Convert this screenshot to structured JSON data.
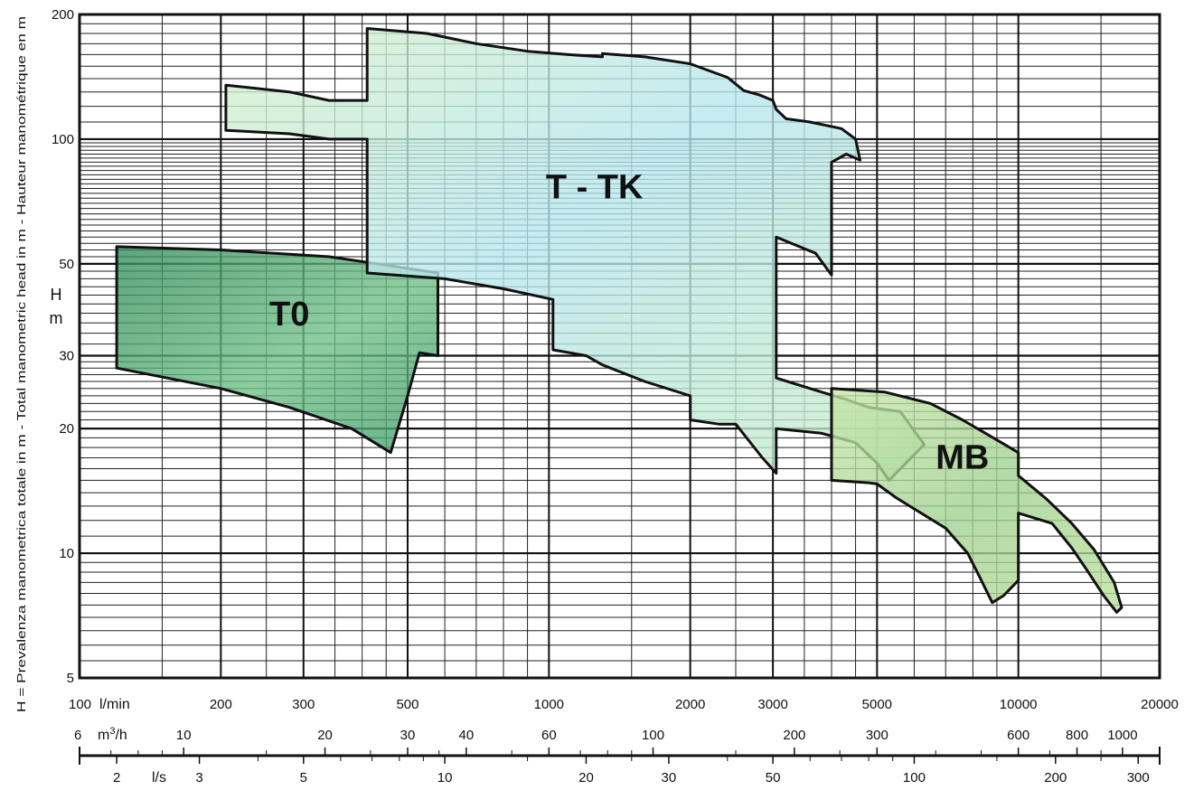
{
  "chart_data": {
    "type": "area",
    "title": "",
    "x_scale": "log",
    "y_scale": "log",
    "xlim_lmin": [
      100,
      20000
    ],
    "ylim_m": [
      5,
      200
    ],
    "grid": true,
    "ylabel": "H = Prevalenza manometrica totale in m - Total manometric head in m - Hauteur manométrique en m",
    "ylabel_short": [
      "H",
      "m"
    ],
    "y_ticks": [
      "5",
      "10",
      "20",
      "30",
      "50",
      "100",
      "200"
    ],
    "y_tick_values": [
      5,
      10,
      20,
      30,
      50,
      100,
      200
    ],
    "x_axes": [
      {
        "unit": "l/min",
        "unit_label_prefix": "100",
        "unit_label_suffix": "l/min",
        "factor": 1,
        "ticks": [
          200,
          300,
          500,
          1000,
          2000,
          3000,
          5000,
          10000,
          20000
        ],
        "tick_labels": [
          "200",
          "300",
          "500",
          "1000",
          "2000",
          "3000",
          "5000",
          "10000",
          "20000"
        ]
      },
      {
        "unit": "m3/h",
        "unit_label_prefix": "6",
        "unit_label_base": "m",
        "unit_label_sup": "3",
        "unit_label_rest": "/h",
        "factor": 16.6667,
        "ticks": [
          10,
          20,
          30,
          40,
          60,
          100,
          200,
          300,
          600,
          800,
          1000
        ],
        "tick_labels": [
          "10",
          "20",
          "30",
          "40",
          "60",
          "100",
          "200",
          "300",
          "600",
          "800",
          "1000"
        ]
      },
      {
        "unit": "l/s",
        "unit_label": "l/s",
        "factor": 60,
        "ticks": [
          2,
          3,
          5,
          10,
          20,
          30,
          50,
          100,
          200,
          300
        ],
        "tick_labels": [
          "2",
          "3",
          "5",
          "10",
          "20",
          "30",
          "50",
          "100",
          "200",
          "300"
        ]
      }
    ],
    "series": [
      {
        "name": "T0",
        "color": "#4fa872",
        "label_at": [
          280,
          35.5
        ],
        "polygon": [
          [
            120,
            55
          ],
          [
            200,
            54
          ],
          [
            340,
            52
          ],
          [
            430,
            50
          ],
          [
            580,
            47.5
          ],
          [
            580,
            30
          ],
          [
            530,
            30.5
          ],
          [
            500,
            24
          ],
          [
            460,
            17.5
          ],
          [
            380,
            20
          ],
          [
            280,
            22.5
          ],
          [
            200,
            25
          ],
          [
            120,
            28
          ]
        ]
      },
      {
        "name": "T - TK",
        "color": "#bfe8e2",
        "label_at": [
          1250,
          72
        ],
        "polygon": [
          [
            205,
            135
          ],
          [
            280,
            130
          ],
          [
            340,
            124
          ],
          [
            410,
            124
          ],
          [
            410,
            185
          ],
          [
            550,
            180
          ],
          [
            700,
            170
          ],
          [
            900,
            163
          ],
          [
            1100,
            160
          ],
          [
            1300,
            158
          ],
          [
            1300,
            161
          ],
          [
            1600,
            158
          ],
          [
            2000,
            152
          ],
          [
            2400,
            141
          ],
          [
            2600,
            131
          ],
          [
            2800,
            128
          ],
          [
            3000,
            124
          ],
          [
            3050,
            118
          ],
          [
            3200,
            112
          ],
          [
            3600,
            110
          ],
          [
            4200,
            106
          ],
          [
            4500,
            100
          ],
          [
            4600,
            89
          ],
          [
            4300,
            92
          ],
          [
            4000,
            88
          ],
          [
            4000,
            47
          ],
          [
            3700,
            53
          ],
          [
            3050,
            58
          ],
          [
            3050,
            26.5
          ],
          [
            3600,
            25
          ],
          [
            4300,
            23.5
          ],
          [
            4800,
            22.5
          ],
          [
            5600,
            22
          ],
          [
            6300,
            18.3
          ],
          [
            5300,
            15
          ],
          [
            5000,
            16.5
          ],
          [
            4500,
            18.5
          ],
          [
            3800,
            19.5
          ],
          [
            3050,
            20
          ],
          [
            3050,
            15.6
          ],
          [
            2850,
            17
          ],
          [
            2500,
            20.5
          ],
          [
            2300,
            20.5
          ],
          [
            2000,
            21
          ],
          [
            2000,
            24
          ],
          [
            1600,
            26
          ],
          [
            1300,
            28.5
          ],
          [
            1200,
            30
          ],
          [
            1020,
            31
          ],
          [
            1020,
            41
          ],
          [
            800,
            43.5
          ],
          [
            600,
            46
          ],
          [
            410,
            47.5
          ],
          [
            410,
            100
          ],
          [
            340,
            100
          ],
          [
            280,
            103
          ],
          [
            205,
            105
          ]
        ]
      },
      {
        "name": "MB",
        "color": "#a9d99a",
        "label_at": [
          7600,
          16
        ],
        "polygon": [
          [
            4000,
            25
          ],
          [
            5200,
            24.5
          ],
          [
            6500,
            23
          ],
          [
            7600,
            21
          ],
          [
            8500,
            19.5
          ],
          [
            10000,
            17.5
          ],
          [
            10000,
            15.4
          ],
          [
            11500,
            13.5
          ],
          [
            13000,
            11.8
          ],
          [
            14500,
            10.2
          ],
          [
            16000,
            8.5
          ],
          [
            16600,
            7.4
          ],
          [
            16200,
            7.2
          ],
          [
            15200,
            7.9
          ],
          [
            14000,
            9.1
          ],
          [
            13000,
            10.3
          ],
          [
            11800,
            11.8
          ],
          [
            10000,
            12.5
          ],
          [
            10000,
            8.6
          ],
          [
            9300,
            7.9
          ],
          [
            8800,
            7.6
          ],
          [
            8300,
            8.7
          ],
          [
            7800,
            10
          ],
          [
            7000,
            11.5
          ],
          [
            6000,
            12.8
          ],
          [
            5500,
            13.6
          ],
          [
            5000,
            14.7
          ],
          [
            4800,
            14.8
          ],
          [
            4000,
            15
          ]
        ]
      }
    ]
  }
}
